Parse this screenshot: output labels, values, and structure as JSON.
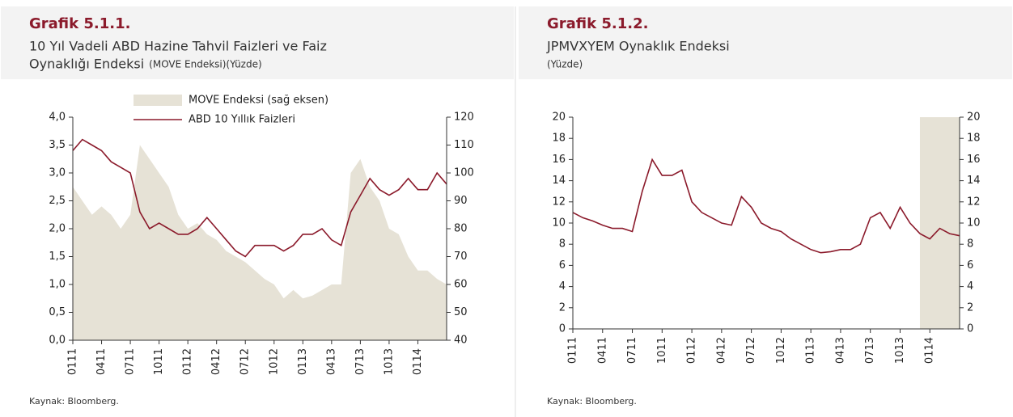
{
  "chart_data": [
    {
      "type": "line",
      "title": "Grafik 5.1.1.",
      "subtitle_lines": [
        "10 Yıl Vadeli ABD Hazine Tahvil Faizleri ve Faiz",
        "Oynaklığı Endeksi"
      ],
      "unit_note": "(MOVE  Endeksi)(Yüzde)",
      "source": "Kaynak: Bloomberg.",
      "categories": [
        "0111",
        null,
        null,
        "0411",
        null,
        null,
        "0711",
        null,
        null,
        "1011",
        null,
        null,
        "0112",
        null,
        null,
        "0412",
        null,
        null,
        "0712",
        null,
        null,
        "1012",
        null,
        null,
        "0113",
        null,
        null,
        "0413",
        null,
        null,
        "0713",
        null,
        null,
        "1013",
        null,
        null,
        "0114",
        null,
        null,
        null
      ],
      "ylim": [
        0,
        4
      ],
      "yticks": [
        {
          "value": 0,
          "label": "0,0"
        },
        {
          "value": 0.5,
          "label": "0,5"
        },
        {
          "value": 1,
          "label": "1,0"
        },
        {
          "value": 1.5,
          "label": "1,5"
        },
        {
          "value": 2,
          "label": "2,0"
        },
        {
          "value": 2.5,
          "label": "2,5"
        },
        {
          "value": 3,
          "label": "3,0"
        },
        {
          "value": 3.5,
          "label": "3,5"
        },
        {
          "value": 4,
          "label": "4,0"
        }
      ],
      "y2lim": [
        40,
        120
      ],
      "y2ticks": [
        40,
        50,
        60,
        70,
        80,
        90,
        100,
        110,
        120
      ],
      "legend": true,
      "series": [
        {
          "name": "MOVE Endeksi (sağ eksen)",
          "style": "area",
          "axis": "y2",
          "color": "#e6e2d6",
          "values": [
            95,
            90,
            85,
            88,
            85,
            80,
            85,
            110,
            105,
            100,
            95,
            85,
            80,
            82,
            78,
            76,
            72,
            70,
            68,
            65,
            62,
            60,
            55,
            58,
            55,
            56,
            58,
            60,
            60,
            100,
            105,
            95,
            90,
            80,
            78,
            70,
            65,
            65,
            62,
            60
          ]
        },
        {
          "name": "ABD 10 Yıllık Faizleri",
          "style": "line",
          "color": "#8b1a2b",
          "values": [
            3.4,
            3.6,
            3.5,
            3.4,
            3.2,
            3.1,
            3.0,
            2.3,
            2.0,
            2.1,
            2.0,
            1.9,
            1.9,
            2.0,
            2.2,
            2.0,
            1.8,
            1.6,
            1.5,
            1.7,
            1.7,
            1.7,
            1.6,
            1.7,
            1.9,
            1.9,
            2.0,
            1.8,
            1.7,
            2.3,
            2.6,
            2.9,
            2.7,
            2.6,
            2.7,
            2.9,
            2.7,
            2.7,
            3.0,
            2.8
          ]
        }
      ]
    },
    {
      "type": "line",
      "title": "Grafik 5.1.2.",
      "subtitle_lines": [
        "JPMVXYEM  Oynaklık Endeksi"
      ],
      "unit_note": "(Yüzde)",
      "source": "Kaynak: Bloomberg.",
      "categories": [
        "0111",
        null,
        null,
        "0411",
        null,
        null,
        "0711",
        null,
        null,
        "1011",
        null,
        null,
        "0112",
        null,
        null,
        "0412",
        null,
        null,
        "0712",
        null,
        null,
        "1012",
        null,
        null,
        "0113",
        null,
        null,
        "0413",
        null,
        null,
        "0713",
        null,
        null,
        "1013",
        null,
        null,
        "0114",
        null,
        null,
        null
      ],
      "ylim": [
        0,
        20
      ],
      "yticks": [
        0,
        2,
        4,
        6,
        8,
        10,
        12,
        14,
        16,
        18,
        20
      ],
      "y2lim": [
        0,
        20
      ],
      "y2ticks": [
        0,
        2,
        4,
        6,
        8,
        10,
        12,
        14,
        16,
        18,
        20
      ],
      "legend": false,
      "highlight": {
        "from": 35,
        "to": 39,
        "color": "#e6e2d6"
      },
      "series": [
        {
          "style": "line",
          "color": "#8b1a2b",
          "values": [
            11,
            10.5,
            10.2,
            9.8,
            9.5,
            9.5,
            9.2,
            13,
            16,
            14.5,
            14.5,
            15,
            12,
            11,
            10.5,
            10,
            9.8,
            12.5,
            11.5,
            10,
            9.5,
            9.2,
            8.5,
            8,
            7.5,
            7.2,
            7.3,
            7.5,
            7.5,
            8,
            10.5,
            11,
            9.5,
            11.5,
            10,
            9,
            8.5,
            9.5,
            9,
            8.8
          ]
        }
      ]
    }
  ]
}
